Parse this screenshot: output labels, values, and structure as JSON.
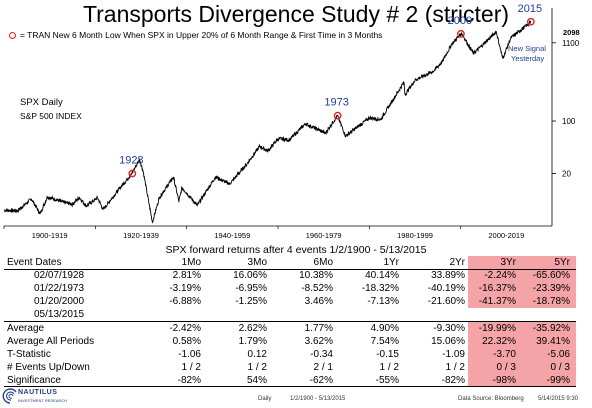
{
  "page": {
    "title": "Transports Divergence Study # 2 (stricter)",
    "legend_text": "= TRAN New 6 Month Low When SPX in Upper 20% of 6 Month Range & First Time in 3 Months",
    "chart_label_1": "SPX Daily",
    "chart_label_2": "S&P 500 INDEX",
    "last_value_label": "2098",
    "new_signal_line1": "New Signal",
    "new_signal_line2": "Yesterday",
    "stats_title": "SPX forward returns after 4 events 1/2/1900 - 5/13/2015",
    "logo_text": "NAUTILUS",
    "logo_sub": "INVESTMENT RESEARCH",
    "footer_daily": "Daily",
    "footer_range": "1/2/1900 - 5/13/2015",
    "footer_source": "Data Source: Bloomberg",
    "footer_date": "5/14/2015 9:30"
  },
  "colors": {
    "price_line": "#000000",
    "signal_marker": "#e02020",
    "signal_year_label": "#1f3f99",
    "highlight": "#f4a3a6"
  },
  "chart_data": {
    "type": "line",
    "title": "Transports Divergence Study # 2 (stricter)",
    "y_scale": "log",
    "ylim": [
      4,
      3200
    ],
    "x_range": [
      1900,
      2020
    ],
    "y_ticks": [
      20,
      100,
      1100
    ],
    "x_tick_labels": [
      "1900-1919",
      "1920-1939",
      "1940-1959",
      "1960-1979",
      "1980-1999",
      "2000-2019"
    ],
    "x_tick_ranges": [
      [
        1900,
        1919
      ],
      [
        1920,
        1939
      ],
      [
        1940,
        1959
      ],
      [
        1960,
        1979
      ],
      [
        1980,
        1999
      ],
      [
        2000,
        2019
      ]
    ],
    "series": [
      {
        "x": [
          1900,
          1903,
          1906,
          1907.9,
          1909.5,
          1913,
          1915,
          1916.5,
          1918,
          1920.5,
          1921.7,
          1925,
          1928,
          1929.7,
          1930.5,
          1932.5,
          1934,
          1937.1,
          1938.3,
          1939,
          1942.3,
          1946.3,
          1949.4,
          1953,
          1956,
          1957.8,
          1960,
          1962.5,
          1966,
          1970.4,
          1973,
          1974.8,
          1980,
          1982.5,
          1987.6,
          1987.8,
          1990,
          1994,
          1996,
          1998,
          2000.2,
          2002.8,
          2007.8,
          2009.2,
          2011,
          2013,
          2015.4
        ],
        "y": [
          6.5,
          6.4,
          9.2,
          5.8,
          9.8,
          8.3,
          7.8,
          9.6,
          7.4,
          9.5,
          6.6,
          12,
          20,
          31,
          21,
          4.5,
          9.5,
          18,
          8.5,
          13,
          7.5,
          18,
          14.5,
          26,
          46,
          40,
          58,
          56,
          92,
          69,
          118,
          63,
          110,
          105,
          330,
          224,
          350,
          460,
          620,
          1050,
          1480,
          790,
          1550,
          680,
          1280,
          1600,
          2098
        ]
      }
    ],
    "signals": [
      {
        "label": "1928",
        "x": 1928.1,
        "y": 20
      },
      {
        "label": "1973",
        "x": 1973.06,
        "y": 118
      },
      {
        "label": "2000",
        "x": 2000.05,
        "y": 1450
      },
      {
        "label": "2015",
        "x": 2015.37,
        "y": 2098
      }
    ]
  },
  "stats": {
    "columns": [
      "Event Dates",
      "1Mo",
      "3Mo",
      "6Mo",
      "1Yr",
      "2Yr",
      "3Yr",
      "5Yr"
    ],
    "events": [
      {
        "date": "02/07/1928",
        "values": [
          "2.81%",
          "16.06%",
          "10.38%",
          "40.14%",
          "33.89%",
          "-2.24%",
          "-65.60%"
        ]
      },
      {
        "date": "01/22/1973",
        "values": [
          "-3.19%",
          "-6.95%",
          "-8.52%",
          "-18.32%",
          "-40.19%",
          "-16.37%",
          "-23.39%"
        ]
      },
      {
        "date": "01/20/2000",
        "values": [
          "-6.88%",
          "-1.25%",
          "3.46%",
          "-7.13%",
          "-21.60%",
          "-41.37%",
          "-18.78%"
        ]
      },
      {
        "date": "05/13/2015",
        "values": [
          "",
          "",
          "",
          "",
          "",
          "",
          ""
        ]
      }
    ],
    "summary": [
      {
        "label": "Average",
        "values": [
          "-2.42%",
          "2.62%",
          "1.77%",
          "4.90%",
          "-9.30%",
          "-19.99%",
          "-35.92%"
        ]
      },
      {
        "label": "Average All Periods",
        "values": [
          "0.58%",
          "1.79%",
          "3.62%",
          "7.54%",
          "15.06%",
          "22.32%",
          "39.41%"
        ]
      },
      {
        "label": "T-Statistic",
        "values": [
          "-1.06",
          "0.12",
          "-0.34",
          "-0.15",
          "-1.09",
          "-3.70",
          "-5.06"
        ]
      },
      {
        "label": "# Events Up/Down",
        "values": [
          "1 / 2",
          "1 / 2",
          "2 / 1",
          "1 / 2",
          "1 / 2",
          "0 / 3",
          "0 / 3"
        ]
      },
      {
        "label": "Significance",
        "values": [
          "-82%",
          "54%",
          "-62%",
          "-55%",
          "-82%",
          "-98%",
          "-99%"
        ]
      }
    ]
  }
}
